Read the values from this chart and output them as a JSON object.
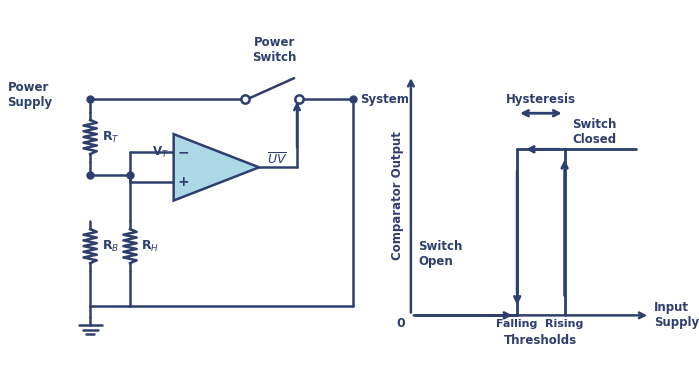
{
  "bg_color": "#ffffff",
  "line_color": "#2e3f6e",
  "text_color": "#2e3f6e",
  "comp_fill": "#add8e6",
  "comp_stroke": "#2e3f6e",
  "fig_width": 6.99,
  "fig_height": 3.84,
  "labels": {
    "power_supply": "Power\nSupply",
    "power_switch": "Power\nSwitch",
    "system": "System",
    "RT": "R$_T$",
    "RB": "R$_B$",
    "RH": "R$_H$",
    "VT": "V$_T$",
    "UV": "$\\overline{UV}$",
    "comparator_output": "Comparator Output",
    "input_supply": "Input\nSupply",
    "switch_open": "Switch\nOpen",
    "switch_closed": "Switch\nClosed",
    "hysteresis": "Hysteresis",
    "falling": "Falling",
    "rising": "Rising",
    "thresholds": "Thresholds",
    "zero": "0"
  }
}
